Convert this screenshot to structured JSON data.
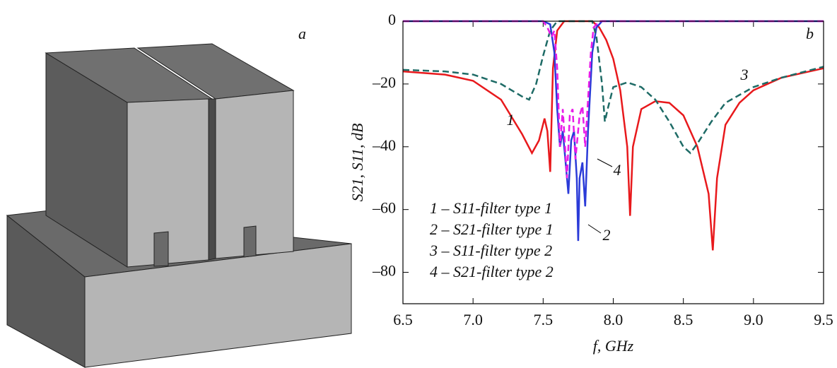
{
  "panel_a": {
    "label": "a"
  },
  "chart_data": {
    "type": "line",
    "panel_label": "b",
    "x_label": "f, GHz",
    "y_label": "S21, S11, dB",
    "xlim": [
      6.5,
      9.5
    ],
    "ylim": [
      -90,
      0
    ],
    "xticks": [
      6.5,
      {
        "value": 7,
        "label": "7.0"
      },
      7.5,
      {
        "value": 8,
        "label": "8.0"
      },
      8.5,
      {
        "value": 9,
        "label": "9.0"
      },
      9.5
    ],
    "yticks": [
      0,
      {
        "value": -20,
        "label": "–20"
      },
      {
        "value": -40,
        "label": "–40"
      },
      {
        "value": -60,
        "label": "–60"
      },
      {
        "value": -80,
        "label": "–80"
      }
    ],
    "grid": false,
    "series": [
      {
        "name": "1 – S11-filter type 1",
        "color": "#e8191c",
        "style": "solid",
        "x": [
          6.5,
          6.8,
          7.0,
          7.2,
          7.35,
          7.42,
          7.47,
          7.51,
          7.53,
          7.55,
          7.57,
          7.6,
          7.65,
          7.85,
          7.9,
          7.95,
          8.0,
          8.05,
          8.1,
          8.12,
          8.14,
          8.2,
          8.3,
          8.4,
          8.5,
          8.6,
          8.68,
          8.71,
          8.74,
          8.8,
          8.9,
          9.0,
          9.2,
          9.5
        ],
        "values": [
          -16,
          -17,
          -19,
          -25,
          -36,
          -42,
          -38,
          -31,
          -35,
          -48,
          -15,
          -3,
          0,
          0,
          -2,
          -6,
          -12,
          -22,
          -40,
          -62,
          -40,
          -28,
          -25.5,
          -26,
          -30,
          -40,
          -55,
          -73,
          -50,
          -33,
          -26,
          -22,
          -18,
          -15
        ]
      },
      {
        "name": "2 – S21-filter type 1",
        "color": "#2b3bd8",
        "style": "solid",
        "x": [
          6.5,
          7.5,
          7.55,
          7.58,
          7.6,
          7.62,
          7.64,
          7.66,
          7.68,
          7.7,
          7.72,
          7.74,
          7.75,
          7.76,
          7.78,
          7.8,
          7.82,
          7.85,
          7.88,
          7.92,
          9.5
        ],
        "values": [
          0,
          0,
          -1,
          -10,
          -28,
          -40,
          -35,
          -45,
          -55,
          -38,
          -35,
          -50,
          -70,
          -50,
          -45,
          -59,
          -35,
          -10,
          -2,
          0,
          0
        ]
      },
      {
        "name": "3 – S11-filter type 2",
        "color": "#1e6b66",
        "style": "dashed",
        "x": [
          6.5,
          6.8,
          7.0,
          7.2,
          7.35,
          7.4,
          7.45,
          7.5,
          7.55,
          7.6,
          7.85,
          7.88,
          7.92,
          7.94,
          7.96,
          8.0,
          8.1,
          8.2,
          8.3,
          8.4,
          8.5,
          8.55,
          8.6,
          8.7,
          8.8,
          9.0,
          9.2,
          9.5
        ],
        "values": [
          -15.5,
          -16,
          -17,
          -20,
          -24,
          -25,
          -20,
          -11,
          -3,
          0,
          0,
          -5,
          -20,
          -32,
          -28,
          -21,
          -19.5,
          -21,
          -25,
          -32,
          -40,
          -42,
          -39,
          -32,
          -26,
          -21,
          -18,
          -14.5
        ]
      },
      {
        "name": "4 – S21-filter type 2",
        "color": "#e81ce8",
        "style": "dashed",
        "x": [
          6.5,
          7.5,
          7.53,
          7.56,
          7.58,
          7.6,
          7.62,
          7.64,
          7.67,
          7.69,
          7.71,
          7.73,
          7.76,
          7.78,
          7.8,
          7.82,
          7.84,
          7.86,
          7.9,
          9.5
        ],
        "values": [
          0,
          0,
          -2,
          -5,
          -3,
          -15,
          -40,
          -28,
          -50,
          -30,
          -28,
          -44,
          -30,
          -27,
          -40,
          -25,
          -10,
          -2,
          0,
          0
        ]
      }
    ],
    "annotations": [
      "1",
      "2",
      "3",
      "4"
    ]
  }
}
